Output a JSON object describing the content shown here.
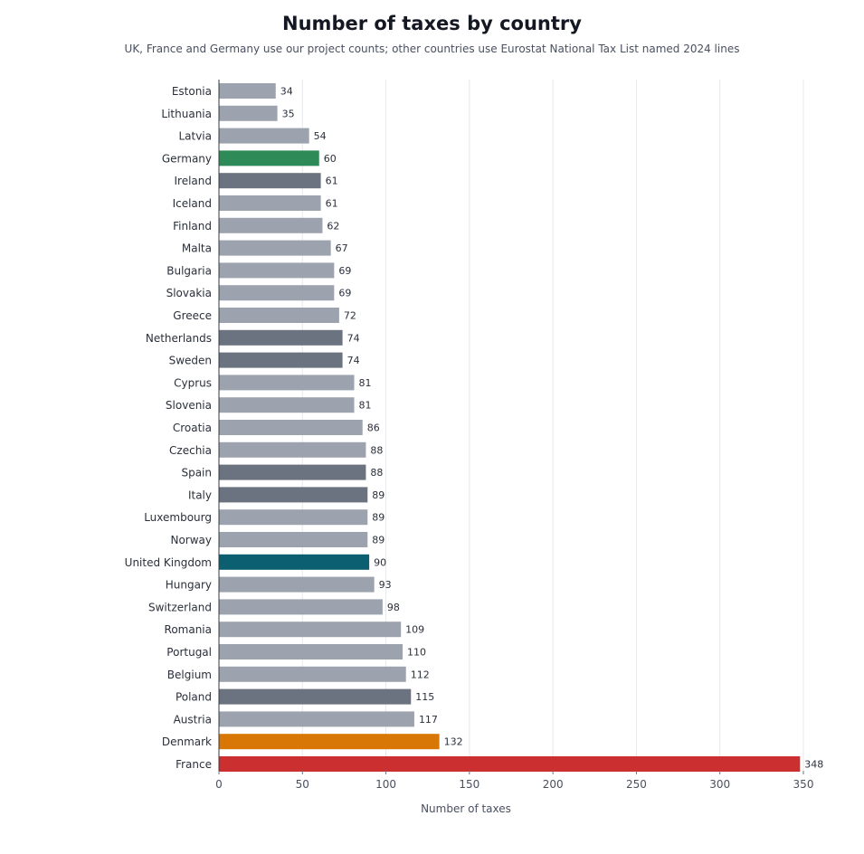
{
  "chart_data": {
    "type": "bar",
    "orientation": "horizontal",
    "title": "Number of taxes by country",
    "subtitle": "UK, France and Germany use our project counts; other countries use Eurostat National Tax List named 2024 lines",
    "xlabel": "Number of taxes",
    "ylabel": "",
    "xlim": [
      0,
      350
    ],
    "xticks": [
      0,
      50,
      100,
      150,
      200,
      250,
      300,
      350
    ],
    "grid": "vertical",
    "categories": [
      "Estonia",
      "Lithuania",
      "Latvia",
      "Germany",
      "Ireland",
      "Iceland",
      "Finland",
      "Malta",
      "Bulgaria",
      "Slovakia",
      "Greece",
      "Netherlands",
      "Sweden",
      "Cyprus",
      "Slovenia",
      "Croatia",
      "Czechia",
      "Spain",
      "Italy",
      "Luxembourg",
      "Norway",
      "United Kingdom",
      "Hungary",
      "Switzerland",
      "Romania",
      "Portugal",
      "Belgium",
      "Poland",
      "Austria",
      "Denmark",
      "France"
    ],
    "values": [
      34,
      35,
      54,
      60,
      61,
      61,
      62,
      67,
      69,
      69,
      72,
      74,
      74,
      81,
      81,
      86,
      88,
      88,
      89,
      89,
      89,
      90,
      93,
      98,
      109,
      110,
      112,
      115,
      117,
      132,
      348
    ],
    "bar_colors": [
      "#9ca3af",
      "#9ca3af",
      "#9ca3af",
      "#2e8b57",
      "#6b7280",
      "#9ca3af",
      "#9ca3af",
      "#9ca3af",
      "#9ca3af",
      "#9ca3af",
      "#9ca3af",
      "#6b7280",
      "#6b7280",
      "#9ca3af",
      "#9ca3af",
      "#9ca3af",
      "#9ca3af",
      "#6b7280",
      "#6b7280",
      "#9ca3af",
      "#9ca3af",
      "#0b5f70",
      "#9ca3af",
      "#9ca3af",
      "#9ca3af",
      "#9ca3af",
      "#9ca3af",
      "#6b7280",
      "#9ca3af",
      "#d97706",
      "#cc2f2f"
    ]
  }
}
